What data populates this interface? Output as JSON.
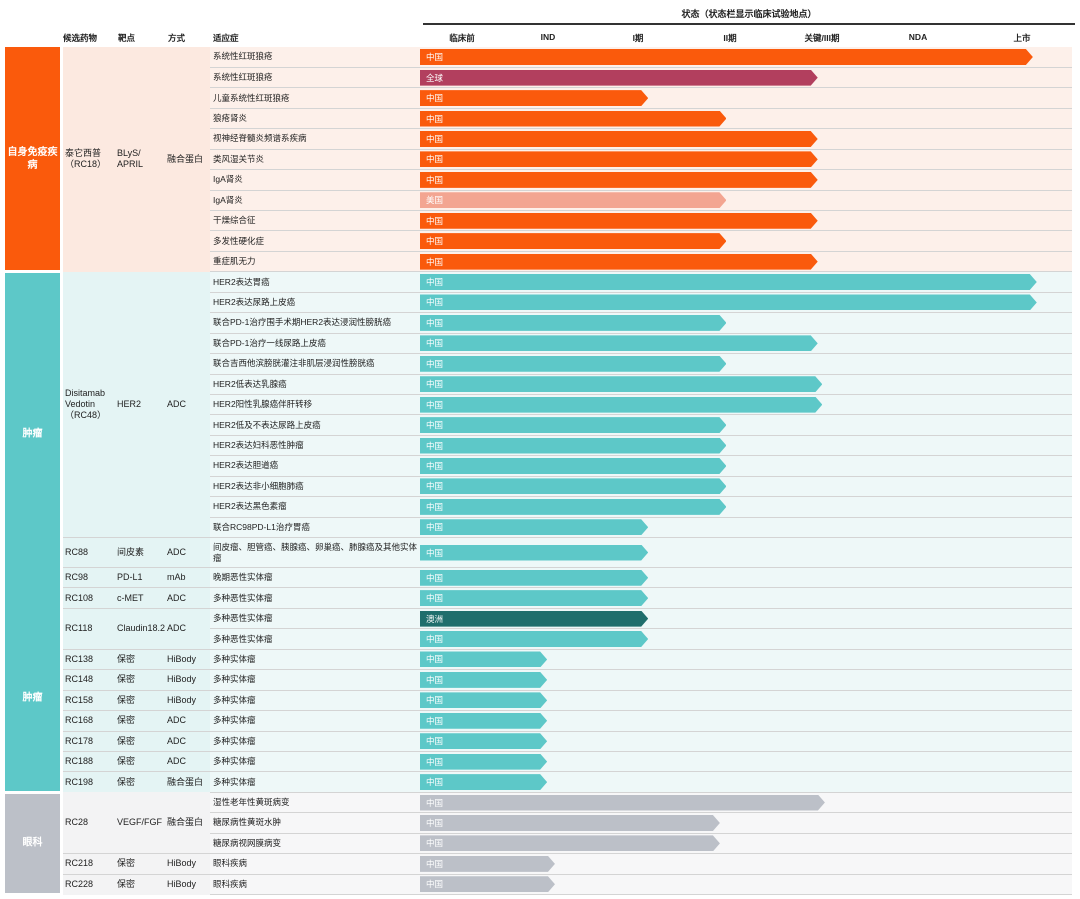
{
  "header": {
    "status_title": "状态（状态栏显示临床试验地点）",
    "columns": {
      "drug": "候选药物",
      "target": "靶点",
      "modality": "方式",
      "indication": "适应症"
    },
    "stages": [
      "临床前",
      "IND",
      "I期",
      "II期",
      "关键/III期",
      "NDA",
      "上市"
    ]
  },
  "region_colors": {
    "全球": "#b23f5e",
    "美国": "#f3a591",
    "澳洲": "#1f6e6c"
  },
  "groups": [
    {
      "name": "自身免疫疾病",
      "labels": [
        "自身免疫疾病"
      ],
      "color": "#fa5a0c",
      "bg": "#fce9e0",
      "track_bg": "#fdf0ea",
      "drugs": [
        {
          "name": "泰它西普（RC18）",
          "target": "BLyS/ APRIL",
          "modality": "融合蛋白",
          "indications": [
            {
              "text": "系统性红斑狼疮",
              "region": "中国",
              "progress": 0.94
            },
            {
              "text": "系统性红斑狼疮",
              "region": "全球",
              "progress": 0.61
            },
            {
              "text": "儿童系统性红斑狼疮",
              "region": "中国",
              "progress": 0.35
            },
            {
              "text": "狼疮肾炎",
              "region": "中国",
              "progress": 0.47
            },
            {
              "text": "视神经脊髓炎频谱系疾病",
              "region": "中国",
              "progress": 0.61
            },
            {
              "text": "类风湿关节炎",
              "region": "中国",
              "progress": 0.61
            },
            {
              "text": "IgA肾炎",
              "region": "中国",
              "progress": 0.61
            },
            {
              "text": "IgA肾炎",
              "region": "美国",
              "progress": 0.47
            },
            {
              "text": "干燥综合征",
              "region": "中国",
              "progress": 0.61
            },
            {
              "text": "多发性硬化症",
              "region": "中国",
              "progress": 0.47
            },
            {
              "text": "重症肌无力",
              "region": "中国",
              "progress": 0.61
            }
          ]
        }
      ]
    },
    {
      "name": "肿瘤",
      "labels": [
        "肿瘤",
        "肿瘤"
      ],
      "color": "#5dc8c8",
      "bg": "#e4f4f4",
      "track_bg": "#eef8f8",
      "drugs": [
        {
          "name": "Disitamab Vedotin （RC48）",
          "target": "HER2",
          "modality": "ADC",
          "indications": [
            {
              "text": "HER2表达胃癌",
              "region": "中国",
              "progress": 0.946
            },
            {
              "text": "HER2表达尿路上皮癌",
              "region": "中国",
              "progress": 0.946
            },
            {
              "text": "联合PD-1治疗围手术期HER2表达浸润性膀胱癌",
              "region": "中国",
              "progress": 0.47
            },
            {
              "text": "联合PD-1治疗一线尿路上皮癌",
              "region": "中国",
              "progress": 0.61
            },
            {
              "text": "联合吉西他滨膀胱灌注非肌层浸润性膀胱癌",
              "region": "中国",
              "progress": 0.47
            },
            {
              "text": "HER2低表达乳腺癌",
              "region": "中国",
              "progress": 0.617
            },
            {
              "text": "HER2阳性乳腺癌伴肝转移",
              "region": "中国",
              "progress": 0.617
            },
            {
              "text": "HER2低及不表达尿路上皮癌",
              "region": "中国",
              "progress": 0.47
            },
            {
              "text": "HER2表达妇科恶性肿瘤",
              "region": "中国",
              "progress": 0.47
            },
            {
              "text": "HER2表达胆道癌",
              "region": "中国",
              "progress": 0.47
            },
            {
              "text": "HER2表达非小细胞肺癌",
              "region": "中国",
              "progress": 0.47
            },
            {
              "text": "HER2表达黑色素瘤",
              "region": "中国",
              "progress": 0.47
            },
            {
              "text": "联合RC98PD-L1治疗胃癌",
              "region": "中国",
              "progress": 0.35
            }
          ]
        },
        {
          "name": "RC88",
          "target": "间皮素",
          "modality": "ADC",
          "tall": true,
          "indications": [
            {
              "text": "间皮瘤、胆管癌、胰腺癌、卵巢癌、肺腺癌及其他实体瘤",
              "region": "中国",
              "progress": 0.35
            }
          ]
        },
        {
          "name": "RC98",
          "target": "PD-L1",
          "modality": "mAb",
          "indications": [
            {
              "text": "晚期恶性实体瘤",
              "region": "中国",
              "progress": 0.35
            }
          ]
        },
        {
          "name": "RC108",
          "target": "c-MET",
          "modality": "ADC",
          "indications": [
            {
              "text": "多种恶性实体瘤",
              "region": "中国",
              "progress": 0.35
            }
          ]
        },
        {
          "name": "RC118",
          "target": "Claudin18.2",
          "modality": "ADC",
          "indications": [
            {
              "text": "多种恶性实体瘤",
              "region": "澳洲",
              "progress": 0.35
            },
            {
              "text": "多种恶性实体瘤",
              "region": "中国",
              "progress": 0.35
            }
          ]
        },
        {
          "name": "RC138",
          "target": "保密",
          "modality": "HiBody",
          "indications": [
            {
              "text": "多种实体瘤",
              "region": "中国",
              "progress": 0.195
            }
          ]
        },
        {
          "name": "RC148",
          "target": "保密",
          "modality": "HiBody",
          "indications": [
            {
              "text": "多种实体瘤",
              "region": "中国",
              "progress": 0.195
            }
          ]
        },
        {
          "name": "RC158",
          "target": "保密",
          "modality": "HiBody",
          "indications": [
            {
              "text": "多种实体瘤",
              "region": "中国",
              "progress": 0.195
            }
          ]
        },
        {
          "name": "RC168",
          "target": "保密",
          "modality": "ADC",
          "indications": [
            {
              "text": "多种实体瘤",
              "region": "中国",
              "progress": 0.195
            }
          ]
        },
        {
          "name": "RC178",
          "target": "保密",
          "modality": "ADC",
          "indications": [
            {
              "text": "多种实体瘤",
              "region": "中国",
              "progress": 0.195
            }
          ]
        },
        {
          "name": "RC188",
          "target": "保密",
          "modality": "ADC",
          "indications": [
            {
              "text": "多种实体瘤",
              "region": "中国",
              "progress": 0.195
            }
          ]
        },
        {
          "name": "RC198",
          "target": "保密",
          "modality": "融合蛋白",
          "indications": [
            {
              "text": "多种实体瘤",
              "region": "中国",
              "progress": 0.195
            }
          ]
        }
      ]
    },
    {
      "name": "眼科",
      "labels": [
        "眼科"
      ],
      "color": "#bcc0c8",
      "bg": "#f3f3f4",
      "track_bg": "#f7f7f8",
      "drugs": [
        {
          "name": "RC28",
          "target": "VEGF/FGF",
          "modality": "融合蛋白",
          "indications": [
            {
              "text": "湿性老年性黄斑病变",
              "region": "中国",
              "progress": 0.621
            },
            {
              "text": "糖尿病性黄斑水肿",
              "region": "中国",
              "progress": 0.46
            },
            {
              "text": "糖尿病视网膜病变",
              "region": "中国",
              "progress": 0.46
            }
          ]
        },
        {
          "name": "RC218",
          "target": "保密",
          "modality": "HiBody",
          "indications": [
            {
              "text": "眼科疾病",
              "region": "中国",
              "progress": 0.207
            }
          ]
        },
        {
          "name": "RC228",
          "target": "保密",
          "modality": "HiBody",
          "indications": [
            {
              "text": "眼科疾病",
              "region": "中国",
              "progress": 0.207
            }
          ]
        }
      ]
    }
  ]
}
